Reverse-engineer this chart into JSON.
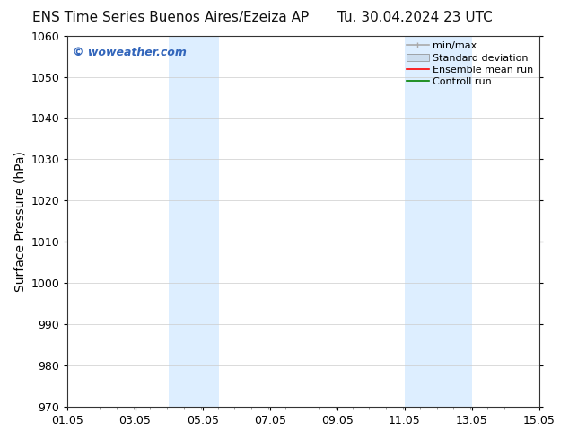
{
  "title_left": "ENS Time Series Buenos Aires/Ezeiza AP",
  "title_right": "Tu. 30.04.2024 23 UTC",
  "ylabel": "Surface Pressure (hPa)",
  "xlim": [
    1.05,
    15.05
  ],
  "ylim": [
    970,
    1060
  ],
  "yticks": [
    970,
    980,
    990,
    1000,
    1010,
    1020,
    1030,
    1040,
    1050,
    1060
  ],
  "xtick_labels": [
    "01.05",
    "03.05",
    "05.05",
    "07.05",
    "09.05",
    "11.05",
    "13.05",
    "15.05"
  ],
  "xtick_positions": [
    1.05,
    3.05,
    5.05,
    7.05,
    9.05,
    11.05,
    13.05,
    15.05
  ],
  "shaded_bands": [
    {
      "x_start": 4.05,
      "x_end": 5.55
    },
    {
      "x_start": 11.05,
      "x_end": 13.05
    }
  ],
  "shade_color": "#ddeeff",
  "background_color": "#ffffff",
  "watermark_text": "© woweather.com",
  "watermark_color": "#3366bb",
  "legend_entries": [
    {
      "label": "min/max",
      "color": "#aaaaaa",
      "lw": 1.2
    },
    {
      "label": "Standard deviation",
      "color": "#ccddee",
      "lw": 6
    },
    {
      "label": "Ensemble mean run",
      "color": "red",
      "lw": 1.2
    },
    {
      "label": "Controll run",
      "color": "green",
      "lw": 1.2
    }
  ],
  "grid_color": "#cccccc",
  "title_fontsize": 11,
  "axis_label_fontsize": 10,
  "tick_fontsize": 9,
  "watermark_fontsize": 9,
  "legend_fontsize": 8
}
